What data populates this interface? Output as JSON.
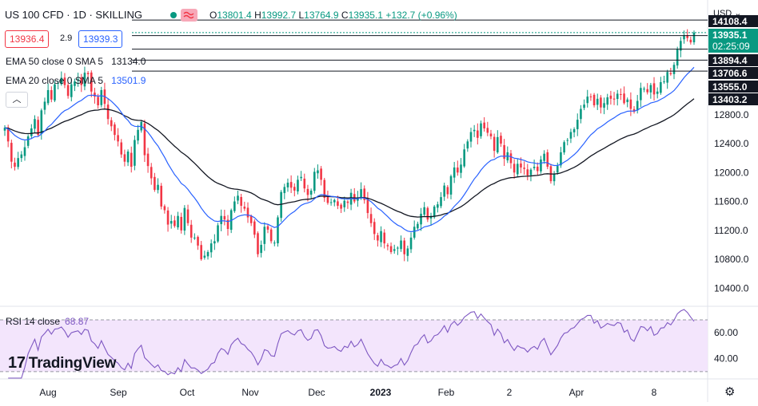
{
  "header": {
    "symbol": "US 100 CFD · 1D · SKILLING",
    "open_label": "O",
    "open": "13801.4",
    "high_label": "H",
    "high": "13992.7",
    "low_label": "L",
    "low": "13764.9",
    "close_label": "C",
    "close": "13935.1",
    "change": "+132.7 (+0.96%)",
    "sell_price": "13936.4",
    "spread": "2.9",
    "buy_price": "13939.3",
    "currency": "USD"
  },
  "indicators": {
    "ema50_label": "EMA 50 close 0 SMA 5",
    "ema50_value": "13134.0",
    "ema20_label": "EMA 20 close 0 SMA 5",
    "ema20_value": "13501.9",
    "rsi_label": "RSI 14 close",
    "rsi_value": "68.87",
    "collapse_glyph": "︿"
  },
  "branding": {
    "logo_text": "TradingView",
    "logo_mark": "17"
  },
  "colors": {
    "up": "#089981",
    "down": "#f23645",
    "ema20": "#2962ff",
    "ema50": "#131722",
    "rsi": "#7e57c2",
    "rsi_fill": "#f3e5fc"
  },
  "chart_data": {
    "type": "candlestick",
    "title": "US 100 CFD · 1D · SKILLING",
    "y_axis_ticks": [
      10400,
      10800,
      11200,
      11600,
      12000,
      12400,
      12800
    ],
    "y_axis_tick_labels": [
      "10400.0",
      "10800.0",
      "11200.0",
      "11600.0",
      "12000.0",
      "12400.0",
      "12800.0"
    ],
    "y_range": [
      10150,
      14320
    ],
    "x_axis_labels": [
      "Aug",
      "Sep",
      "Oct",
      "Nov",
      "Dec",
      "2023",
      "Feb",
      "2",
      "Apr",
      "8"
    ],
    "price_levels": [
      {
        "value": 14108.4,
        "label": "14108.4",
        "style": "dark"
      },
      {
        "value": 13935.1,
        "label": "13935.1",
        "sub_label": "02:25:09",
        "style": "teal"
      },
      {
        "value": 13894.4,
        "label": "13894.4",
        "style": "dark"
      },
      {
        "value": 13706.6,
        "label": "13706.6",
        "style": "dark"
      },
      {
        "value": 13555.0,
        "label": "13555.0",
        "style": "dark"
      },
      {
        "value": 13403.2,
        "label": "13403.2",
        "style": "dark"
      }
    ],
    "closes": [
      12620,
      12430,
      12150,
      12080,
      12200,
      12250,
      12350,
      12500,
      12610,
      12740,
      12520,
      12860,
      12980,
      13140,
      13010,
      13220,
      13240,
      13310,
      13210,
      13060,
      13220,
      13260,
      13290,
      13210,
      13380,
      13360,
      13120,
      13050,
      12930,
      13140,
      12950,
      12740,
      12640,
      12520,
      12430,
      12250,
      12150,
      12290,
      12080,
      12450,
      12590,
      12700,
      12240,
      12090,
      11920,
      11760,
      11830,
      11530,
      11480,
      11280,
      11330,
      11260,
      11400,
      11200,
      11510,
      11300,
      11100,
      11100,
      10990,
      10800,
      10850,
      10900,
      11020,
      11050,
      11270,
      11400,
      11350,
      11220,
      11480,
      11600,
      11680,
      11540,
      11500,
      11380,
      11300,
      11140,
      10870,
      11000,
      11250,
      11210,
      11050,
      11030,
      11380,
      11730,
      11800,
      11860,
      11790,
      11750,
      11900,
      11940,
      11780,
      11690,
      11750,
      12010,
      12030,
      11900,
      11650,
      11580,
      11590,
      11620,
      11540,
      11500,
      11610,
      11580,
      11720,
      11600,
      11650,
      11770,
      11620,
      11440,
      11300,
      11150,
      11060,
      11190,
      11020,
      10980,
      10900,
      10940,
      10960,
      11060,
      10870,
      10950,
      11100,
      11250,
      11290,
      11430,
      11520,
      11350,
      11400,
      11530,
      11560,
      11660,
      11820,
      11700,
      11950,
      12070,
      12000,
      12110,
      12320,
      12430,
      12560,
      12590,
      12480,
      12680,
      12610,
      12550,
      12500,
      12300,
      12490,
      12400,
      12190,
      12280,
      12130,
      12000,
      12120,
      12070,
      12050,
      11960,
      12040,
      12080,
      12020,
      12180,
      12260,
      12080,
      11880,
      11980,
      12090,
      12280,
      12420,
      12450,
      12560,
      12600,
      12730,
      12880,
      12940,
      13050,
      13050,
      12930,
      13020,
      12900,
      12960,
      13040,
      13020,
      13010,
      13090,
      13080,
      12960,
      13010,
      12880,
      12840,
      12990,
      13170,
      13160,
      13110,
      13210,
      13080,
      13120,
      13250,
      13260,
      13390,
      13360,
      13490,
      13710,
      13820,
      13900,
      13860,
      13800,
      13935.1
    ],
    "highs_lows_note": "",
    "ema20": [],
    "ema50": [],
    "rsi": {
      "period": 14,
      "last": 68.87,
      "ticks": [
        40,
        60
      ],
      "tick_labels": [
        "40.00",
        "60.00"
      ],
      "band": [
        30,
        70
      ],
      "range": [
        25,
        78
      ]
    }
  }
}
